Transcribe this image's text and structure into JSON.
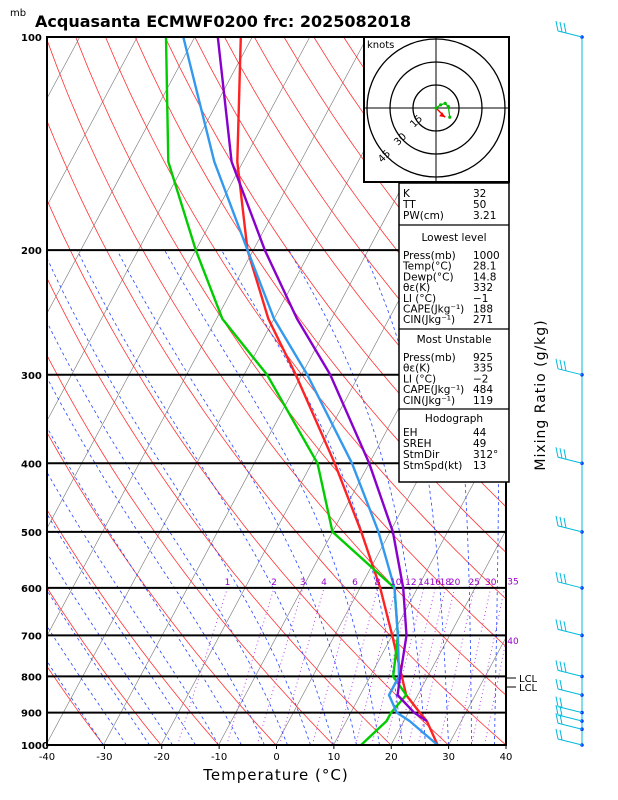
{
  "title": "Acquasanta ECMWF0200  frc: 2025082018",
  "pressure_unit": "mb",
  "chart_data": {
    "type": "line",
    "subtype": "skew-T log-P diagram",
    "xlabel": "Temperature (°C)",
    "ylabel": "Mixing Ratio (g/kg)",
    "xlim": [
      -40,
      40
    ],
    "x_ticks": [
      -40,
      -30,
      -20,
      -10,
      0,
      10,
      20,
      30,
      40
    ],
    "y_ticks": [
      100,
      200,
      300,
      400,
      500,
      600,
      700,
      800,
      900,
      1000
    ],
    "series": [
      {
        "color": "#ff2222",
        "points": [
          [
            1000,
            28.1
          ],
          [
            925,
            24
          ],
          [
            900,
            22
          ],
          [
            850,
            18
          ],
          [
            800,
            15.5
          ],
          [
            700,
            10
          ],
          [
            600,
            3.5
          ],
          [
            500,
            -5
          ],
          [
            400,
            -16
          ],
          [
            300,
            -31
          ],
          [
            250,
            -41
          ],
          [
            200,
            -51
          ],
          [
            150,
            -61
          ],
          [
            100,
            -72
          ]
        ]
      },
      {
        "color": "#00cc00",
        "points": [
          [
            1000,
            14.8
          ],
          [
            925,
            17
          ],
          [
            900,
            17
          ],
          [
            850,
            18
          ],
          [
            800,
            14
          ],
          [
            700,
            11
          ],
          [
            600,
            6
          ],
          [
            500,
            -10
          ],
          [
            400,
            -19
          ],
          [
            300,
            -36
          ],
          [
            250,
            -49
          ],
          [
            200,
            -60
          ],
          [
            150,
            -73
          ],
          [
            100,
            -85
          ]
        ]
      },
      {
        "color": "#3399ee",
        "points": [
          [
            1000,
            28.1
          ],
          [
            925,
            21
          ],
          [
            900,
            18
          ],
          [
            850,
            15
          ],
          [
            800,
            15
          ],
          [
            700,
            11
          ],
          [
            600,
            6
          ],
          [
            500,
            -2
          ],
          [
            400,
            -13
          ],
          [
            300,
            -29
          ],
          [
            250,
            -40
          ],
          [
            200,
            -51
          ],
          [
            150,
            -65
          ],
          [
            100,
            -82
          ]
        ]
      },
      {
        "color": "#8800cc",
        "points": [
          [
            925,
            24
          ],
          [
            900,
            21
          ],
          [
            850,
            16.5
          ],
          [
            800,
            15.2
          ],
          [
            700,
            12.5
          ],
          [
            600,
            7.5
          ],
          [
            500,
            0.5
          ],
          [
            400,
            -10
          ],
          [
            300,
            -25
          ],
          [
            250,
            -36
          ],
          [
            200,
            -48
          ],
          [
            150,
            -62
          ],
          [
            100,
            -76
          ]
        ]
      }
    ],
    "mixing_ratio_labels": [
      "1",
      "2",
      "3",
      "4",
      "6",
      "8",
      "10",
      "12",
      "14",
      "16",
      "18",
      "20",
      "25",
      "30",
      "35",
      "40"
    ],
    "lcl_labels": [
      "LCL",
      "LCL"
    ],
    "hodograph": {
      "unit_label": "knots",
      "ring_labels": [
        "15",
        "30",
        "45"
      ],
      "points_uv": [
        [
          0,
          0
        ],
        [
          3,
          2
        ],
        [
          6,
          3
        ],
        [
          8,
          1
        ],
        [
          9,
          -6
        ]
      ],
      "storm_motion_uv": [
        6,
        -6
      ]
    },
    "wind_barbs": {
      "color": "#00bbdd",
      "pressures": [
        100,
        300,
        400,
        500,
        600,
        700,
        800,
        850,
        900,
        925,
        950,
        1000
      ]
    }
  },
  "indices": {
    "general": [
      {
        "label": "K",
        "value": "32"
      },
      {
        "label": "TT",
        "value": "50"
      },
      {
        "label": "PW(cm)",
        "value": "3.21"
      }
    ],
    "lowest": {
      "header": "Lowest level",
      "rows": [
        {
          "label": "Press(mb)",
          "value": "1000"
        },
        {
          "label": "Temp(°C)",
          "value": "28.1"
        },
        {
          "label": "Dewp(°C)",
          "value": "14.8"
        },
        {
          "label": "θε(K)",
          "value": "332"
        },
        {
          "label": "LI (°C)",
          "value": "−1"
        },
        {
          "label": "CAPE(Jkg⁻¹)",
          "value": "188"
        },
        {
          "label": "CIN(Jkg⁻¹)",
          "value": "271"
        }
      ]
    },
    "unstable": {
      "header": "Most Unstable",
      "rows": [
        {
          "label": "Press(mb)",
          "value": "925"
        },
        {
          "label": "θε(K)",
          "value": "335"
        },
        {
          "label": "LI (°C)",
          "value": "−2"
        },
        {
          "label": "CAPE(Jkg⁻¹)",
          "value": "484"
        },
        {
          "label": "CIN(Jkg⁻¹)",
          "value": "119"
        }
      ]
    },
    "hodo": {
      "header": "Hodograph",
      "rows": [
        {
          "label": "EH",
          "value": "44"
        },
        {
          "label": "SREH",
          "value": "49"
        },
        {
          "label": "StmDir",
          "value": "312°"
        },
        {
          "label": "StmSpd(kt)",
          "value": "13"
        }
      ]
    }
  },
  "colors": {
    "dry_adiabat": "#ff3333",
    "moist_adiabat": "#2244ff",
    "mixing_ratio": "#bb44ee",
    "barbs": "#00bbdd",
    "isobar": "#000000",
    "isotherm": "#000000"
  }
}
